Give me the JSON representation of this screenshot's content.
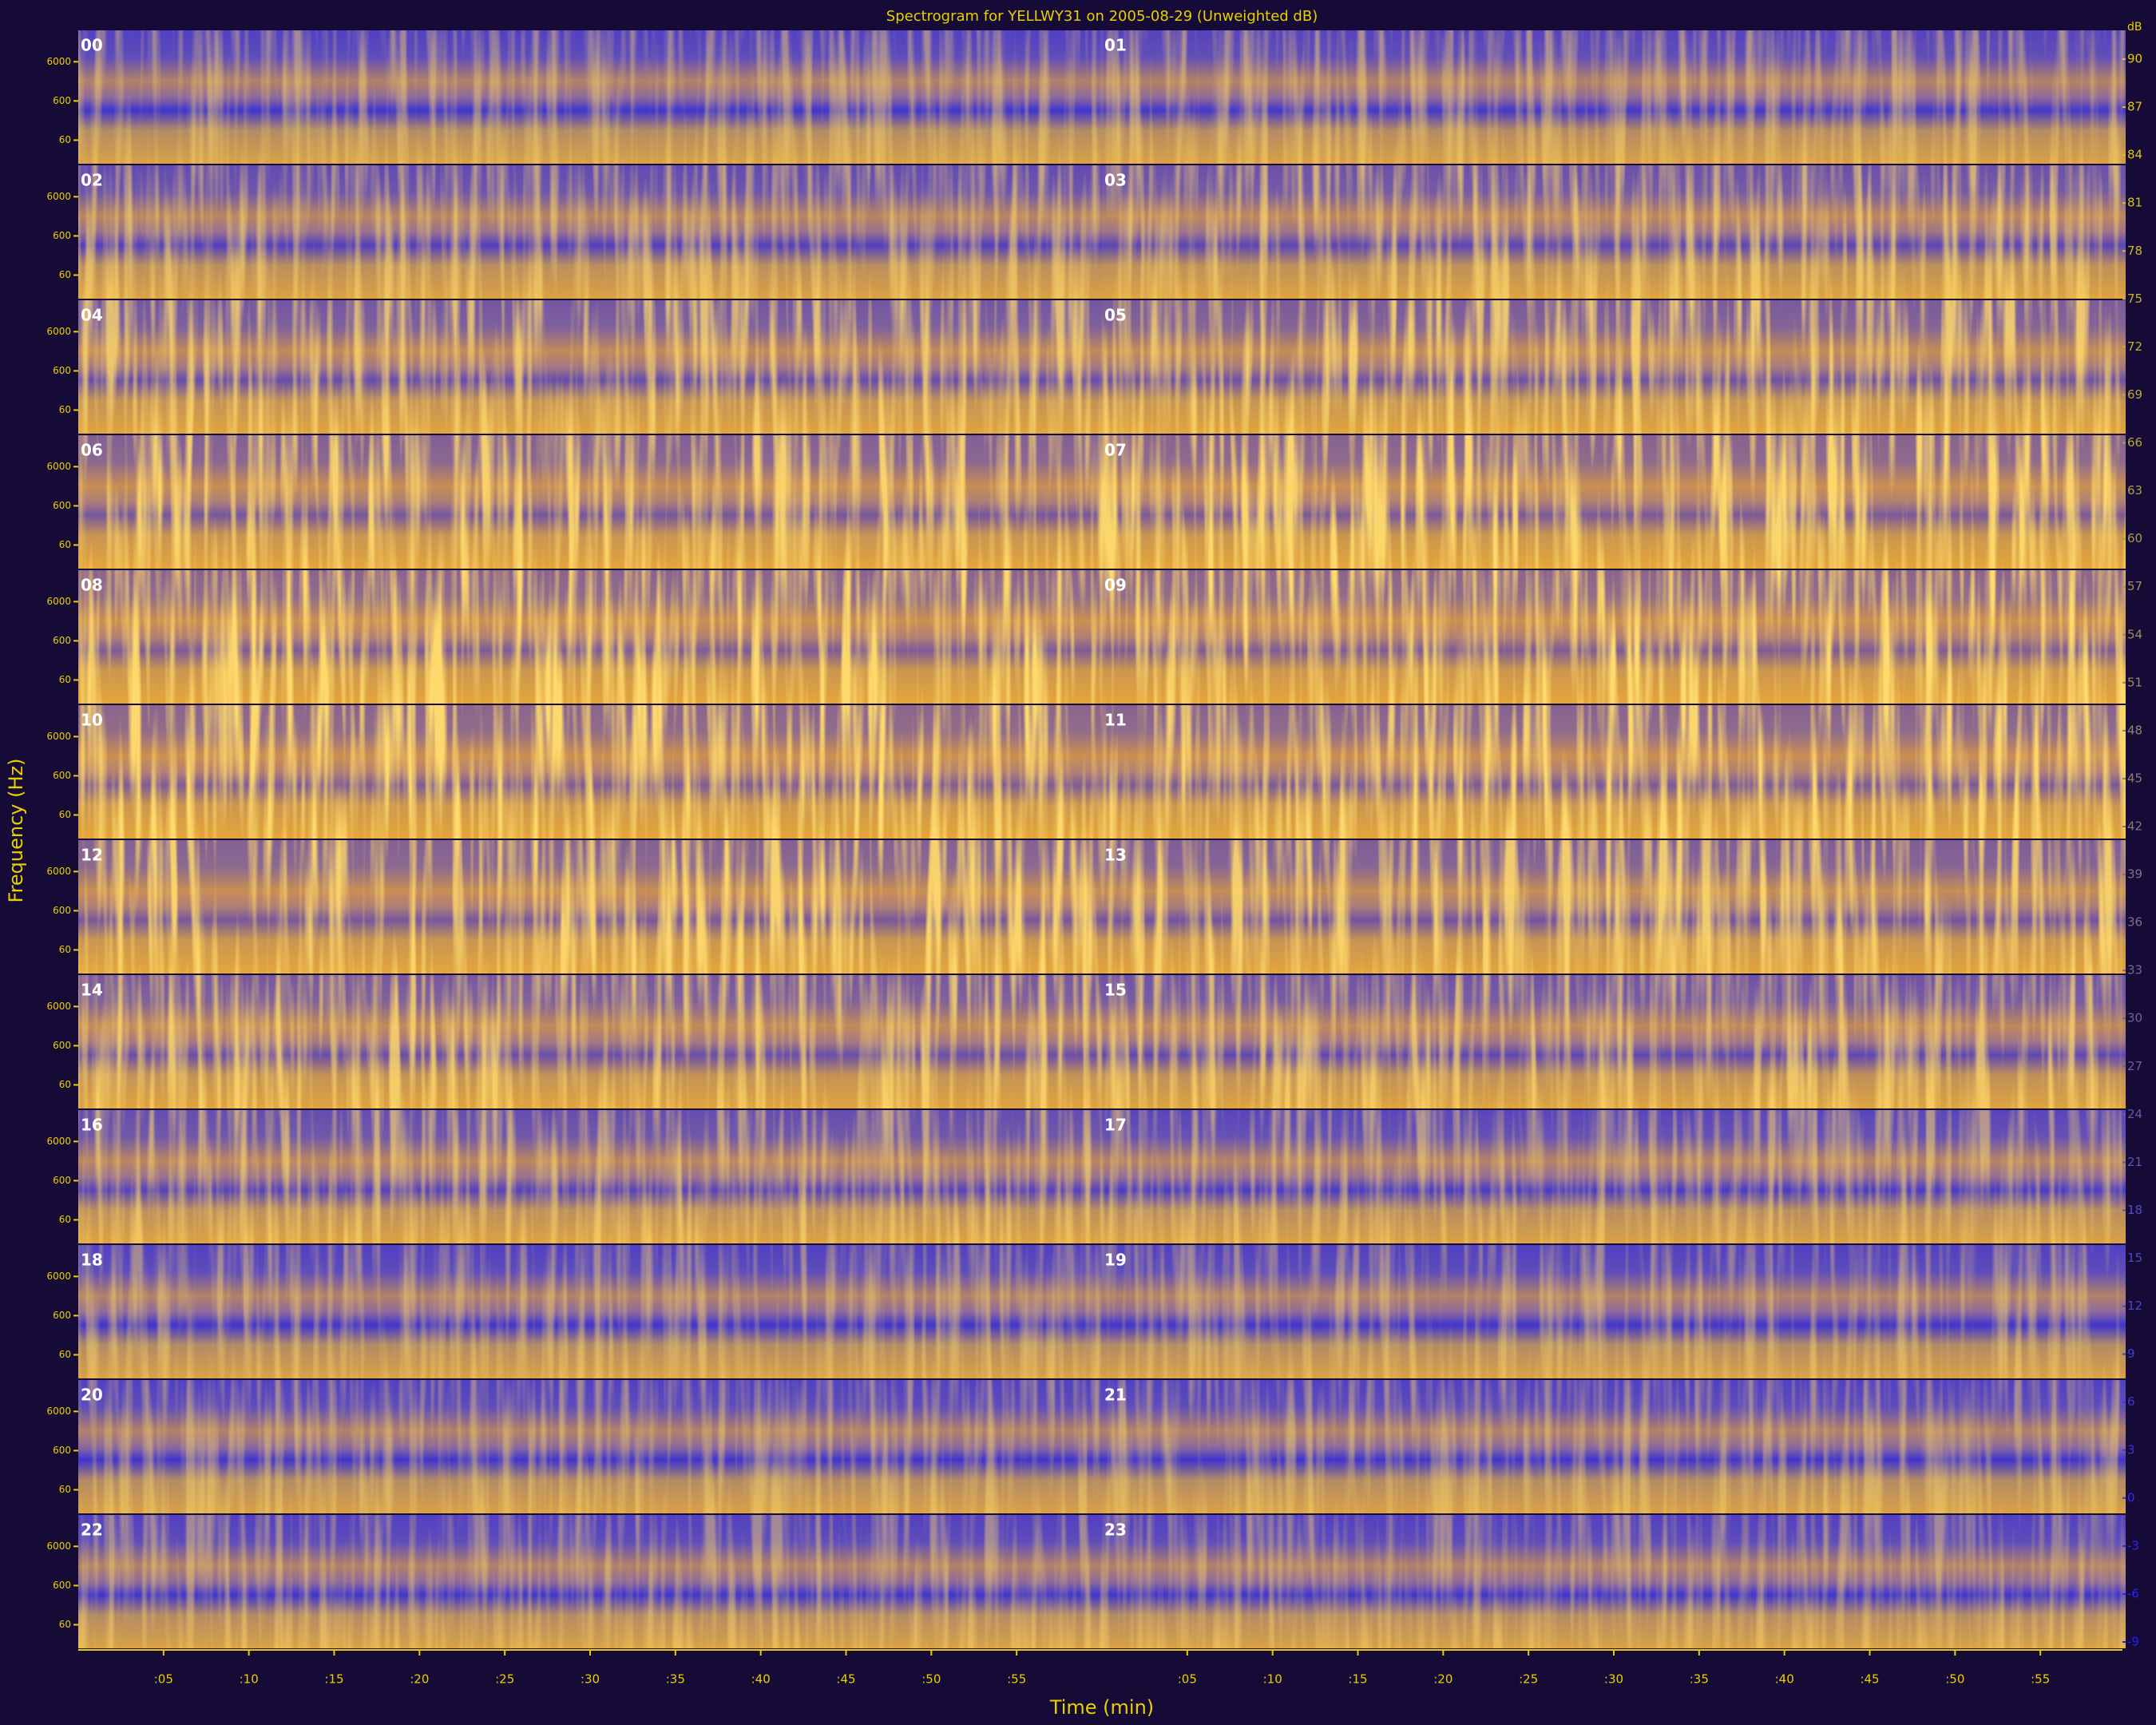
{
  "chart_data": {
    "type": "spectrogram",
    "title": "Spectrogram for YELLWY31 on 2005-08-29 (Unweighted dB)",
    "x_label": "Time (min)",
    "y_label": "Frequency (Hz)",
    "categories": [
      "00",
      "01",
      "02",
      "03",
      "04",
      "05",
      "06",
      "07",
      "08",
      "09",
      "10",
      "11",
      "12",
      "13",
      "14",
      "15",
      "16",
      "17",
      "18",
      "19",
      "20",
      "21",
      "22",
      "23"
    ],
    "xlim": [
      0,
      60
    ],
    "xticks": [
      {
        "value": 5,
        "label": ":05"
      },
      {
        "value": 10,
        "label": ":10"
      },
      {
        "value": 15,
        "label": ":15"
      },
      {
        "value": 20,
        "label": ":20"
      },
      {
        "value": 25,
        "label": ":25"
      },
      {
        "value": 30,
        "label": ":30"
      },
      {
        "value": 35,
        "label": ":35"
      },
      {
        "value": 40,
        "label": ":40"
      },
      {
        "value": 45,
        "label": ":45"
      },
      {
        "value": 50,
        "label": ":50"
      },
      {
        "value": 55,
        "label": ":55"
      }
    ],
    "ylim": [
      15,
      38000
    ],
    "yscale": "log",
    "yticks": [
      60,
      600,
      6000
    ],
    "z_label": "dB",
    "zlim": [
      -9,
      92
    ],
    "zticks": [
      90,
      87,
      84,
      81,
      78,
      75,
      72,
      69,
      66,
      63,
      60,
      57,
      54,
      51,
      48,
      45,
      42,
      39,
      36,
      33,
      30,
      27,
      24,
      21,
      18,
      15,
      12,
      9,
      6,
      3,
      0,
      -3,
      -6,
      -9
    ],
    "colors": [
      "#3a2ad8",
      "#ffb020"
    ]
  }
}
